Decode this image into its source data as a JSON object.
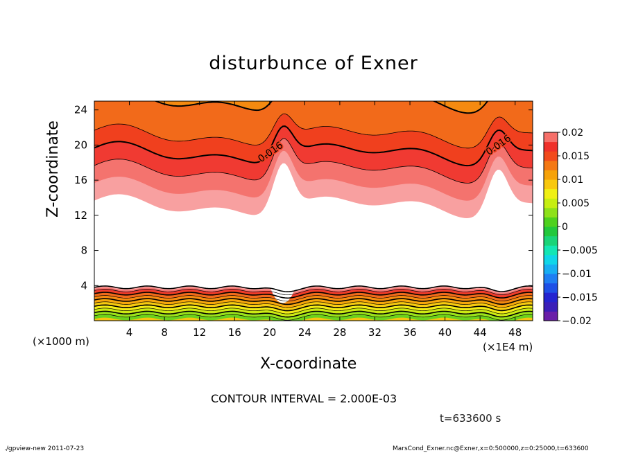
{
  "chart_data": {
    "type": "heatmap",
    "title": "disturbunce of Exner",
    "xlabel": "X-coordinate",
    "ylabel": "Z-coordinate",
    "x_unit_left": "(×1000 m)",
    "x_unit_right": "(×1E4 m)",
    "xlim": [
      0,
      50
    ],
    "ylim": [
      0,
      25
    ],
    "x_ticks": [
      4,
      8,
      12,
      16,
      20,
      24,
      28,
      32,
      36,
      40,
      44,
      48
    ],
    "x_tick_labels": [
      "4",
      "8",
      "12",
      "16",
      "20",
      "24",
      "28",
      "32",
      "36",
      "40",
      "44",
      "48"
    ],
    "y_ticks": [
      4,
      8,
      12,
      16,
      20,
      24
    ],
    "y_tick_labels": [
      "4",
      "8",
      "12",
      "16",
      "20",
      "24"
    ],
    "contour_labels": [
      {
        "text": "0.016",
        "x": 19,
        "z": 18
      },
      {
        "text": "0.016",
        "x": 45,
        "z": 18.8
      }
    ],
    "colorbar": {
      "ticks": [
        0.02,
        0.015,
        0.01,
        0.005,
        0,
        -0.005,
        -0.01,
        -0.015,
        -0.02
      ],
      "tick_labels": [
        "0.02",
        "0.015",
        "0.01",
        "0.005",
        "0",
        "−0.005",
        "−0.01",
        "−0.015",
        "−0.02"
      ],
      "levels": [
        -0.02,
        -0.018,
        -0.016,
        -0.014,
        -0.012,
        -0.01,
        -0.008,
        -0.006,
        -0.004,
        -0.002,
        0,
        0.002,
        0.004,
        0.006,
        0.008,
        0.01,
        0.012,
        0.014,
        0.016,
        0.018,
        0.02
      ],
      "colors": [
        "#6a1fa8",
        "#3b1fb8",
        "#2424d0",
        "#1e50e6",
        "#1f7ef2",
        "#18aef2",
        "#10d6e8",
        "#14e6b4",
        "#1ad478",
        "#22c83c",
        "#4ed11e",
        "#8ee11a",
        "#c6ee12",
        "#f0f014",
        "#f8c80e",
        "#f6a208",
        "#f47814",
        "#f24a1c",
        "#f0302a",
        "#f6706a"
      ]
    },
    "layers": [
      {
        "level": 0.0,
        "color": "#6cd21c"
      },
      {
        "level": 0.002,
        "color": "#9ae21a"
      },
      {
        "level": 0.004,
        "color": "#ccea14"
      },
      {
        "level": 0.006,
        "color": "#f2ec16"
      },
      {
        "level": 0.008,
        "color": "#f8cc10"
      },
      {
        "level": 0.01,
        "color": "#f7a80c"
      },
      {
        "level": 0.012,
        "color": "#f58a10"
      },
      {
        "level": 0.014,
        "color": "#f26a1a"
      },
      {
        "level": 0.016,
        "color": "#f0401e"
      },
      {
        "level": 0.017,
        "color": "#f03a32"
      },
      {
        "level": 0.018,
        "color": "#f4736e"
      },
      {
        "level": 0.019,
        "color": "#f8a0a0"
      },
      {
        "level": 0.02,
        "color": "#ffffff"
      }
    ],
    "contour_interval": "CONTOUR INTERVAL = 2.000E-03",
    "time": "t=633600 s"
  },
  "footer": {
    "left": "./gpview-new   2011-07-23",
    "right": "MarsCond_Exner.nc@Exner,x=0:500000,z=0:25000,t=633600"
  }
}
